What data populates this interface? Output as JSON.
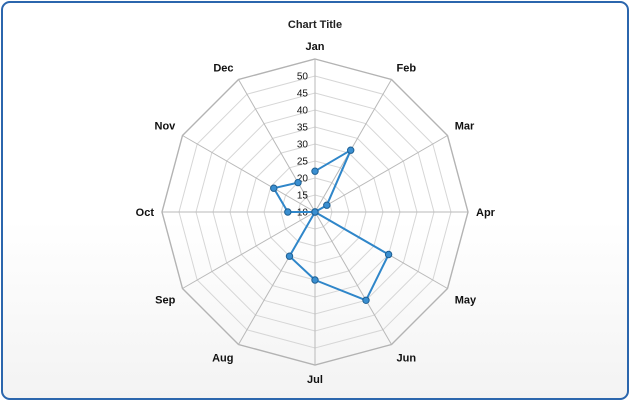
{
  "colors": {
    "frame_border": "#2b66ad",
    "series_line": "#2f86c9",
    "marker_fill": "#3a8fd1",
    "marker_stroke": "#1e5f92",
    "grid": "#d6d6d6",
    "spoke": "#b9b9b9",
    "outer_ring": "#b3b3b3"
  },
  "chart_data": {
    "type": "radar",
    "title": "Chart Title",
    "categories": [
      "Jan",
      "Feb",
      "Mar",
      "Apr",
      "May",
      "Jun",
      "Jul",
      "Aug",
      "Sep",
      "Oct",
      "Nov",
      "Dec"
    ],
    "series": [
      {
        "values": [
          22,
          31,
          14,
          10,
          35,
          40,
          30,
          25,
          10,
          18,
          24,
          20
        ]
      }
    ],
    "rlim": [
      10,
      55
    ],
    "ticks": [
      10,
      15,
      20,
      25,
      30,
      35,
      40,
      45,
      50
    ],
    "tick_labels": [
      "10",
      "15",
      "20",
      "25",
      "30",
      "35",
      "40",
      "45",
      "50"
    ],
    "grid": true,
    "legend": "none"
  }
}
